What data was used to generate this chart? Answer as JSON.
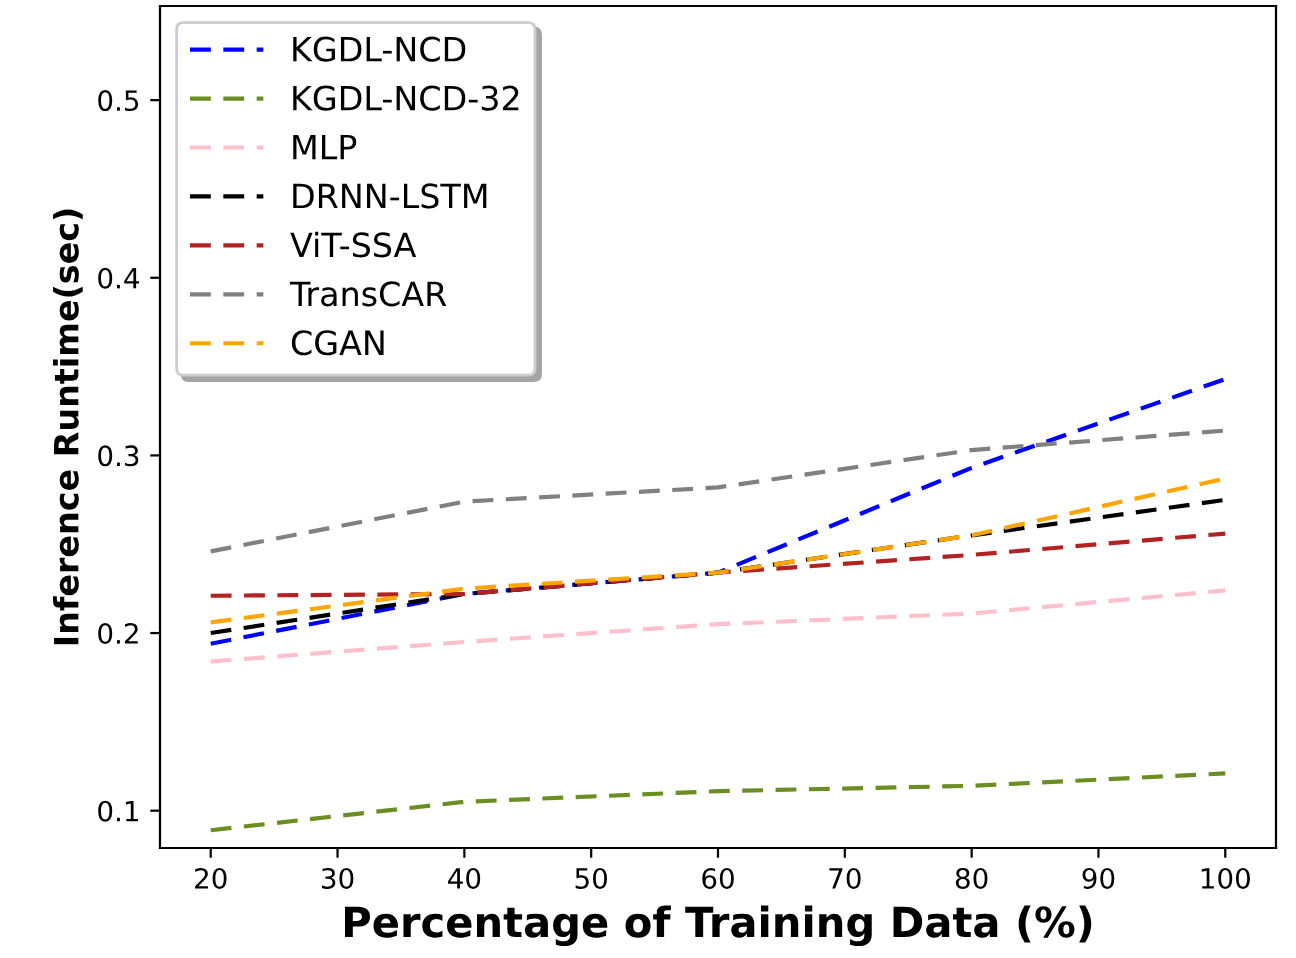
{
  "chart_data": {
    "type": "line",
    "xlabel": "Percentage of Training Data (%)",
    "ylabel": "Inference Runtime(sec)",
    "x": [
      20,
      40,
      60,
      80,
      100
    ],
    "series": [
      {
        "name": "KGDL-NCD",
        "color": "#0000ff",
        "values": [
          0.194,
          0.222,
          0.234,
          0.293,
          0.343
        ]
      },
      {
        "name": "KGDL-NCD-32",
        "color": "#6b8e23",
        "values": [
          0.089,
          0.105,
          0.111,
          0.114,
          0.121
        ]
      },
      {
        "name": "MLP",
        "color": "#ffc0cb",
        "values": [
          0.184,
          0.195,
          0.205,
          0.211,
          0.224
        ]
      },
      {
        "name": "DRNN-LSTM",
        "color": "#000000",
        "values": [
          0.2,
          0.222,
          0.234,
          0.255,
          0.275
        ]
      },
      {
        "name": "ViT-SSA",
        "color": "#b22222",
        "values": [
          0.221,
          0.222,
          0.234,
          0.244,
          0.256
        ]
      },
      {
        "name": "TransCAR",
        "color": "#808080",
        "values": [
          0.246,
          0.274,
          0.282,
          0.303,
          0.314
        ]
      },
      {
        "name": "CGAN",
        "color": "#ffa500",
        "values": [
          0.206,
          0.225,
          0.234,
          0.255,
          0.287
        ]
      }
    ],
    "xlim": [
      16,
      104
    ],
    "xticks": [
      20,
      30,
      40,
      50,
      60,
      70,
      80,
      90,
      100
    ],
    "ylim": [
      0.079,
      0.553
    ],
    "yticks": [
      0.1,
      0.2,
      0.3,
      0.4,
      0.5
    ],
    "line_style": "dashed",
    "legend": "top left",
    "grid": false
  }
}
